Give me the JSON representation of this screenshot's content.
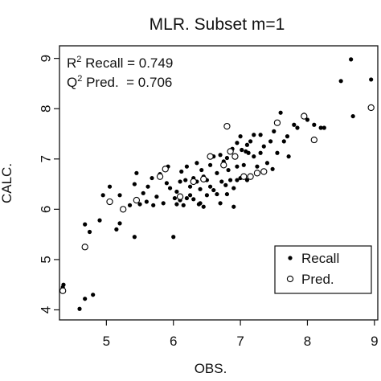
{
  "chart_data": {
    "type": "scatter",
    "title": "MLR. Subset m=1",
    "xlabel": "OBS.",
    "ylabel": "CALC.",
    "xlim": [
      4.3,
      9.05
    ],
    "ylim": [
      3.8,
      9.25
    ],
    "xticks": [
      5,
      6,
      7,
      8,
      9
    ],
    "yticks": [
      4,
      5,
      6,
      7,
      8,
      9
    ],
    "xtick_labels": [
      "5",
      "6",
      "7",
      "8",
      "9"
    ],
    "ytick_labels": [
      "4",
      "5",
      "6",
      "7",
      "8",
      "9"
    ],
    "grid": false,
    "legend_position": "bottom-right",
    "annotations": {
      "recall_prefix": "R",
      "recall_sup": "2",
      "recall_text": " Recall = 0.749",
      "pred_prefix": "Q",
      "pred_sup": "2",
      "pred_text": " Pred.  = 0.706"
    },
    "series": [
      {
        "name": "Recall",
        "marker": "filled-circle",
        "color": "#000000",
        "x": [
          4.35,
          4.36,
          4.6,
          4.68,
          4.75,
          4.8,
          4.68,
          4.9,
          4.95,
          5.05,
          5.15,
          5.2,
          5.35,
          5.42,
          5.42,
          5.45,
          5.5,
          5.55,
          5.6,
          5.62,
          5.7,
          5.75,
          5.8,
          5.85,
          5.9,
          5.95,
          6.0,
          6.05,
          6.05,
          6.1,
          6.1,
          6.12,
          6.15,
          6.2,
          6.2,
          6.25,
          6.25,
          6.3,
          6.3,
          6.35,
          6.35,
          6.4,
          6.4,
          6.42,
          6.45,
          6.5,
          6.5,
          6.55,
          6.55,
          6.6,
          6.6,
          6.65,
          6.65,
          6.7,
          6.7,
          6.72,
          6.75,
          6.8,
          6.8,
          6.82,
          6.85,
          6.88,
          6.9,
          6.9,
          6.95,
          6.95,
          7.0,
          7.0,
          7.02,
          7.05,
          7.1,
          7.1,
          7.12,
          7.15,
          7.2,
          7.2,
          7.25,
          7.3,
          7.3,
          7.35,
          7.4,
          7.45,
          7.5,
          7.55,
          7.6,
          7.65,
          7.7,
          7.72,
          7.8,
          7.85,
          7.95,
          8.0,
          8.1,
          8.2,
          8.25,
          8.5,
          8.65,
          8.68,
          8.95,
          5.92,
          6.02,
          6.45,
          5.2,
          6.38,
          7.48,
          6.95,
          5.68,
          6.18,
          6.78,
          7.08
        ],
        "y": [
          4.45,
          4.5,
          4.02,
          4.22,
          5.55,
          4.3,
          5.7,
          5.78,
          6.28,
          6.45,
          5.6,
          5.72,
          6.08,
          5.45,
          6.5,
          6.72,
          6.1,
          6.32,
          6.15,
          6.45,
          6.08,
          6.25,
          6.7,
          6.12,
          6.52,
          6.42,
          5.45,
          6.35,
          6.1,
          6.18,
          6.55,
          6.75,
          6.08,
          6.22,
          6.85,
          6.28,
          6.45,
          6.2,
          6.62,
          6.55,
          6.92,
          6.12,
          6.4,
          6.78,
          6.05,
          6.58,
          6.28,
          6.88,
          6.45,
          7.05,
          6.38,
          6.72,
          6.3,
          6.12,
          7.08,
          6.55,
          6.95,
          6.3,
          7.02,
          6.78,
          6.58,
          7.2,
          6.05,
          6.42,
          6.85,
          7.32,
          6.62,
          7.45,
          7.18,
          6.88,
          6.58,
          7.28,
          7.12,
          7.35,
          7.05,
          7.48,
          6.85,
          7.48,
          7.12,
          7.25,
          6.92,
          7.35,
          7.55,
          7.12,
          7.92,
          7.35,
          7.45,
          7.05,
          7.68,
          7.62,
          7.88,
          7.78,
          7.68,
          7.62,
          7.62,
          8.55,
          8.98,
          7.85,
          8.58,
          6.85,
          6.22,
          6.65,
          6.28,
          6.1,
          6.8,
          6.58,
          6.62,
          6.58,
          6.48,
          7.15
        ]
      },
      {
        "name": "Pred.",
        "marker": "open-circle",
        "color": "#000000",
        "x": [
          4.35,
          4.68,
          5.05,
          5.25,
          5.45,
          5.8,
          5.88,
          6.1,
          6.3,
          6.45,
          6.55,
          6.75,
          6.8,
          6.85,
          7.05,
          7.15,
          7.25,
          7.35,
          7.55,
          7.95,
          8.1,
          8.95,
          6.92
        ],
        "y": [
          4.38,
          5.25,
          6.15,
          6.0,
          6.18,
          6.65,
          6.8,
          6.25,
          6.55,
          6.6,
          7.05,
          6.88,
          7.65,
          7.15,
          6.65,
          6.65,
          6.72,
          6.75,
          7.72,
          7.85,
          7.38,
          8.02,
          7.05
        ]
      }
    ]
  }
}
